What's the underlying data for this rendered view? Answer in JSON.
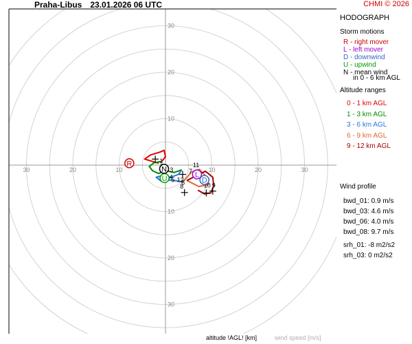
{
  "header": {
    "station": "Praha-Libus",
    "datetime": "23.01.2026 06 UTC",
    "copyright": "CHMI © 2026"
  },
  "legend": {
    "title": "HODOGRAPH",
    "storm_title": "Storm motions",
    "storm_items": [
      {
        "text": "R - right mover",
        "color": "#cc0000"
      },
      {
        "text": "L - left mover",
        "color": "#9900cc"
      },
      {
        "text": "D - downwind",
        "color": "#3366cc"
      },
      {
        "text": "U - upwind",
        "color": "#009900"
      },
      {
        "text": "N - mean wind",
        "color": "#000000"
      },
      {
        "text": "in 0 - 6 km AGL",
        "color": "#000000"
      }
    ],
    "alt_title": "Altitude ranges",
    "alt_items": [
      {
        "text": "0 - 1 km AGL",
        "color": "#e00000"
      },
      {
        "text": "1 - 3 km AGL",
        "color": "#008800"
      },
      {
        "text": "3 - 6 km AGL",
        "color": "#2277dd"
      },
      {
        "text": "6 - 9 km AGL",
        "color": "#dd6633"
      },
      {
        "text": "9 - 12 km AGL",
        "color": "#aa0000"
      }
    ],
    "profile_title": "Wind profile",
    "profile_items": [
      "bwd_01: 0.9 m/s",
      "bwd_03: 4.6 m/s",
      "bwd_06: 4.0 m/s",
      "bwd_08: 9.7 m/s"
    ],
    "srh_items": [
      "srh_01: -8 m2/s2",
      "srh_03: 0 m2/s2"
    ]
  },
  "footer": {
    "altitude_label": "altitude !AGL! [km]",
    "windspeed_label": "wind speed [m/s]"
  },
  "chart_data": {
    "type": "line",
    "subtype": "hodograph",
    "rings": [
      5,
      10,
      15,
      20,
      25,
      30,
      35,
      40
    ],
    "ring_labels": [
      10,
      20,
      30
    ],
    "xlim": [
      -35,
      35
    ],
    "ylim": [
      -35,
      35
    ],
    "grid": true,
    "series": [
      {
        "name": "0 - 1 km AGL",
        "color": "#e00000",
        "points": [
          [
            -1.5,
            0.4
          ],
          [
            -4.5,
            1.3
          ],
          [
            -3.2,
            2.2
          ],
          [
            -1.2,
            2.8
          ],
          [
            -0.3,
            3.2
          ],
          [
            0,
            1.8
          ],
          [
            -0.8,
            0.8
          ]
        ]
      },
      {
        "name": "1 - 3 km AGL",
        "color": "#008800",
        "points": [
          [
            -0.8,
            0.8
          ],
          [
            -2.5,
            0.5
          ],
          [
            -3.5,
            -0.3
          ],
          [
            -2.8,
            -1.2
          ],
          [
            -1.5,
            -1.8
          ],
          [
            0.2,
            -1.2
          ],
          [
            1.8,
            -1.6
          ],
          [
            3.5,
            -1.0
          ]
        ]
      },
      {
        "name": "3 - 6 km AGL",
        "color": "#2277dd",
        "points": [
          [
            3.5,
            -1.0
          ],
          [
            2.8,
            -2.0
          ],
          [
            1.2,
            -2.6
          ],
          [
            -0.8,
            -2.3
          ],
          [
            -2.0,
            -2.6
          ],
          [
            -1.0,
            -3.4
          ],
          [
            1.2,
            -3.2
          ],
          [
            3.8,
            -3.6
          ]
        ]
      },
      {
        "name": "6 - 9 km AGL",
        "color": "#dd6633",
        "points": [
          [
            3.8,
            -3.6
          ],
          [
            5.6,
            -1.5
          ],
          [
            7.3,
            -0.9
          ],
          [
            8.9,
            -2.6
          ],
          [
            9.3,
            -4.2
          ],
          [
            7.2,
            -4.6
          ],
          [
            4.6,
            -3.3
          ]
        ]
      },
      {
        "name": "9 - 12 km AGL",
        "color": "#aa0000",
        "points": [
          [
            4.6,
            -3.3
          ],
          [
            6.0,
            -2.6
          ],
          [
            8.6,
            -1.3
          ],
          [
            10.2,
            -2.6
          ],
          [
            10.4,
            -4.4
          ],
          [
            9.8,
            -6.0
          ],
          [
            8.4,
            -6.2
          ],
          [
            7.0,
            -5.4
          ]
        ]
      }
    ],
    "altitude_labels": [
      {
        "text": "1",
        "x": -0.9,
        "y": 0.9
      },
      {
        "text": "2",
        "x": -0.8,
        "y": -0.2
      },
      {
        "text": "3",
        "x": 1.3,
        "y": -1.0
      },
      {
        "text": "4",
        "x": 1.2,
        "y": -2.6
      },
      {
        "text": "5",
        "x": 1.6,
        "y": -3.2
      },
      {
        "text": "6",
        "x": 3.8,
        "y": -3.8
      },
      {
        "text": "7",
        "x": 5.4,
        "y": -1.3
      },
      {
        "text": "8",
        "x": 3.5,
        "y": -4.6
      },
      {
        "text": "9",
        "x": 10.4,
        "y": -4.4
      },
      {
        "text": "10",
        "x": 9.0,
        "y": -4.4
      },
      {
        "text": "11",
        "x": 6.6,
        "y": 0.0
      },
      {
        "text": "12",
        "x": 3.2,
        "y": -3.2
      }
    ],
    "storm_markers": [
      {
        "label": "R",
        "x": -7.8,
        "y": 0.4,
        "color": "#cc0000"
      },
      {
        "label": "L",
        "x": 6.8,
        "y": -2.0,
        "color": "#9900cc"
      },
      {
        "label": "D",
        "x": 8.4,
        "y": -3.2,
        "color": "#3366cc"
      },
      {
        "label": "U",
        "x": -0.2,
        "y": -2.8,
        "color": "#009900"
      },
      {
        "label": "N",
        "x": -0.3,
        "y": -0.8,
        "color": "#000000"
      }
    ],
    "cross_markers": [
      [
        -2.2,
        1.3
      ],
      [
        3.7,
        -2.0
      ],
      [
        4.1,
        -5.9
      ],
      [
        10.2,
        -5.6
      ],
      [
        8.8,
        -6.0
      ]
    ]
  }
}
